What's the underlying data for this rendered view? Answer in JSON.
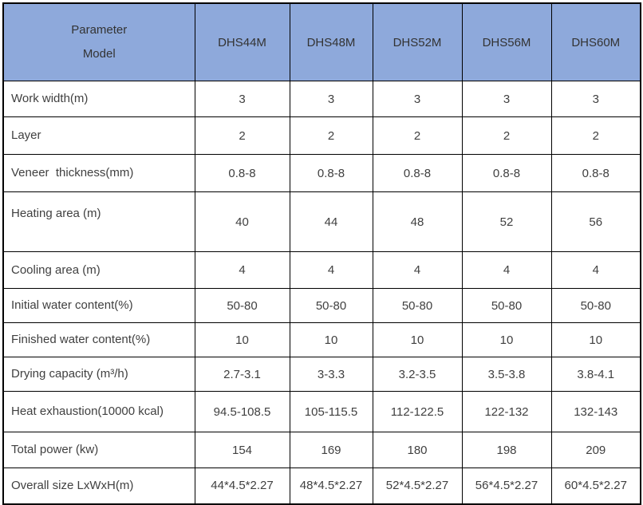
{
  "colors": {
    "header_bg": "#8EA9DB",
    "header_text": "#333333",
    "body_text": "#404040",
    "border": "#000000",
    "background": "#FFFFFF"
  },
  "chart_data": {
    "type": "table",
    "corner_header": {
      "line1": "Parameter",
      "line2": "Model"
    },
    "columns": [
      "DHS44M",
      "DHS48M",
      "DHS52M",
      "DHS56M",
      "DHS60M"
    ],
    "rows": [
      {
        "label": "Work width(m)",
        "values": [
          "3",
          "3",
          "3",
          "3",
          "3"
        ]
      },
      {
        "label": "Layer",
        "values": [
          "2",
          "2",
          "2",
          "2",
          "2"
        ]
      },
      {
        "label": "Veneer  thickness(mm)",
        "values": [
          "0.8-8",
          "0.8-8",
          "0.8-8",
          "0.8-8",
          "0.8-8"
        ]
      },
      {
        "label": "Heating area (m)",
        "values": [
          "40",
          "44",
          "48",
          "52",
          "56"
        ]
      },
      {
        "label": "Cooling area (m)",
        "values": [
          "4",
          "4",
          "4",
          "4",
          "4"
        ]
      },
      {
        "label": "Initial water content(%)",
        "values": [
          "50-80",
          "50-80",
          "50-80",
          "50-80",
          "50-80"
        ]
      },
      {
        "label": "Finished water content(%)",
        "values": [
          "10",
          "10",
          "10",
          "10",
          "10"
        ]
      },
      {
        "label": "Drying capacity (m³/h)",
        "values": [
          "2.7-3.1",
          "3-3.3",
          "3.2-3.5",
          "3.5-3.8",
          "3.8-4.1"
        ]
      },
      {
        "label": "Heat exhaustion(10000 kcal)",
        "values": [
          "94.5-108.5",
          "105-115.5",
          "112-122.5",
          "122-132",
          "132-143"
        ]
      },
      {
        "label": "Total power (kw)",
        "values": [
          "154",
          "169",
          "180",
          "198",
          "209"
        ]
      },
      {
        "label": "Overall size LxWxH(m)",
        "values": [
          "44*4.5*2.27",
          "48*4.5*2.27",
          "52*4.5*2.27",
          "56*4.5*2.27",
          "60*4.5*2.27"
        ]
      }
    ]
  }
}
